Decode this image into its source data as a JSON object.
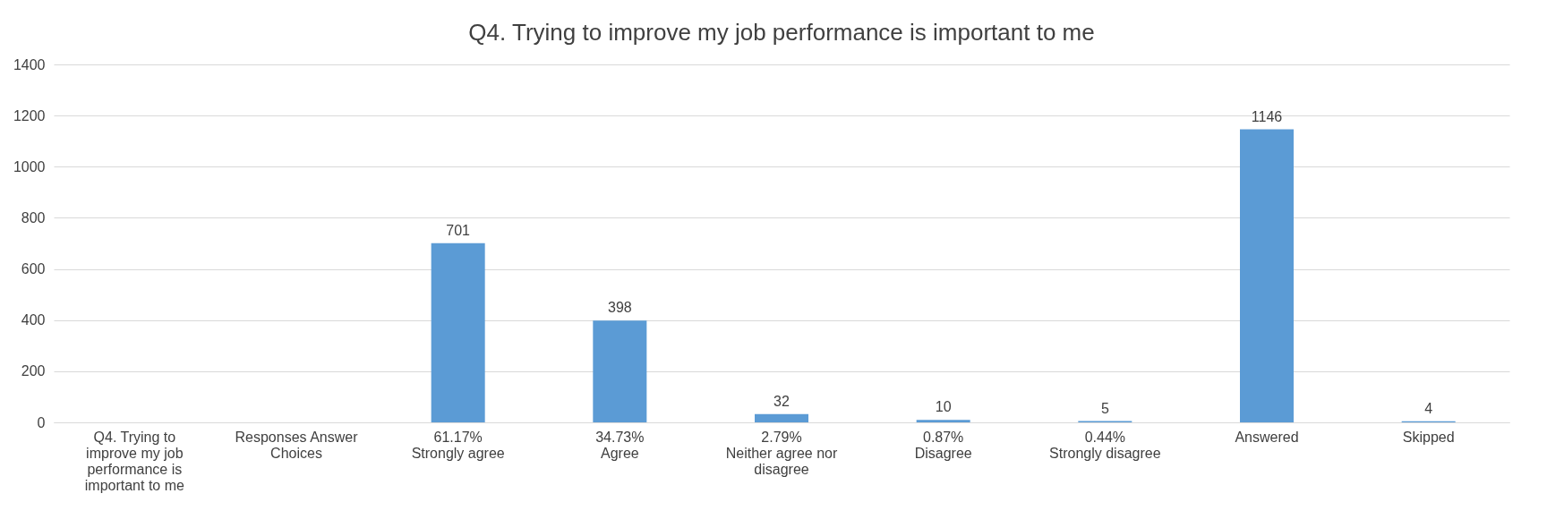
{
  "chart_data": {
    "type": "bar",
    "title": "Q4. Trying to improve my job performance is important to me",
    "categories": [
      "Q4. Trying to improve my job performance is important to me",
      "Responses Answer Choices",
      "61.17% Strongly agree",
      "34.73% Agree",
      "2.79% Neither agree nor disagree",
      "0.87% Disagree",
      "0.44% Strongly disagree",
      "Answered",
      "Skipped"
    ],
    "values": [
      null,
      null,
      701,
      398,
      32,
      10,
      5,
      1146,
      4
    ],
    "color": "#5b9bd5",
    "ylim": [
      0,
      1400
    ],
    "yticks": [
      0,
      200,
      400,
      600,
      800,
      1000,
      1200,
      1400
    ],
    "grid": "y",
    "data_labels": true
  }
}
